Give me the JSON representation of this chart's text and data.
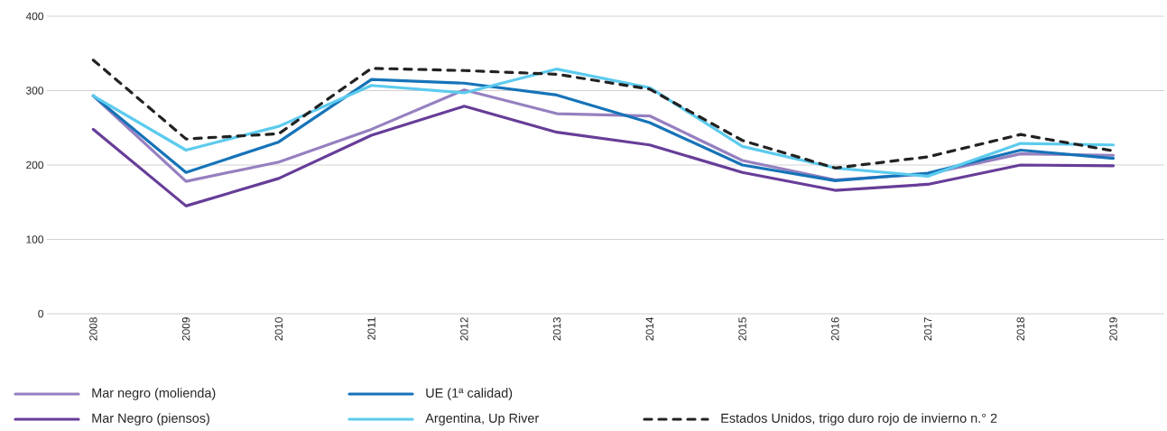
{
  "chart_data": {
    "type": "line",
    "categories": [
      "2008",
      "2009",
      "2010",
      "2011",
      "2012",
      "2013",
      "2014",
      "2015",
      "2016",
      "2017",
      "2018",
      "2019"
    ],
    "ylim": [
      0,
      400
    ],
    "yticks": [
      0,
      100,
      200,
      300,
      400
    ],
    "grid": "y",
    "legend": "bottom",
    "line_style": "solid",
    "series": [
      {
        "name": "Mar negro (molienda)",
        "color": "#9680c0",
        "values": [
          293,
          178,
          204,
          248,
          301,
          269,
          266,
          206,
          180,
          188,
          215,
          213
        ]
      },
      {
        "name": "Mar Negro (piensos)",
        "color": "#673d98",
        "values": [
          248,
          145,
          182,
          240,
          279,
          244,
          227,
          190,
          166,
          174,
          200,
          199
        ]
      },
      {
        "name": "UE (1ª calidad)",
        "color": "#1673b8",
        "values": [
          293,
          190,
          231,
          315,
          310,
          294,
          257,
          200,
          179,
          189,
          220,
          209
        ]
      },
      {
        "name": "Argentina, Up River",
        "color": "#5ccbee",
        "values": [
          293,
          220,
          252,
          307,
          297,
          329,
          304,
          225,
          196,
          185,
          229,
          227
        ]
      },
      {
        "name": "Estados Unidos, trigo duro rojo de invierno n.° 2",
        "color": "#222222",
        "line_style": "dashed",
        "values": [
          341,
          235,
          242,
          330,
          327,
          322,
          302,
          233,
          196,
          211,
          241,
          219
        ]
      }
    ]
  }
}
